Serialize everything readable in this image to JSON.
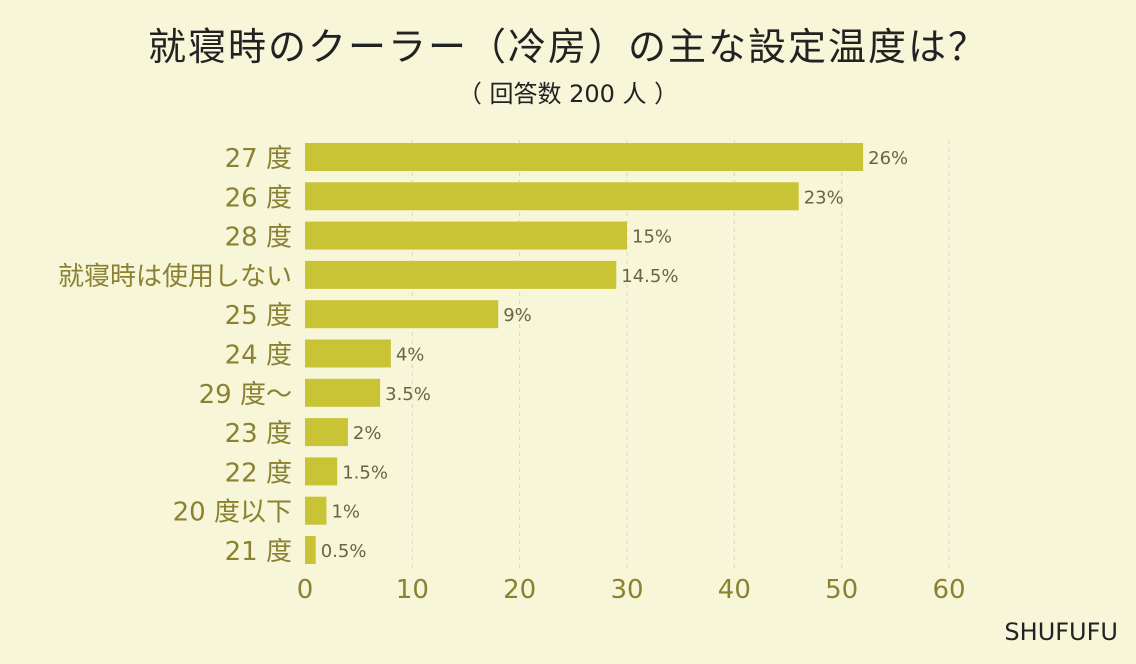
{
  "title": "就寝時のクーラー（冷房）の主な設定温度は？",
  "subtitle": "（ 回答数 200 人 ）",
  "credit": "SHUFUFU",
  "colors": {
    "background": "#f7f6d9",
    "bar": "#c9c436",
    "axis_text": "#8a8232",
    "value_text": "#6b6440",
    "grid": "#d9d7c4"
  },
  "chart_data": {
    "type": "bar",
    "orientation": "horizontal",
    "categories": [
      "27 度",
      "26 度",
      "28 度",
      "就寝時は使用しない",
      "25 度",
      "24 度",
      "29 度～",
      "23 度",
      "22 度",
      "20 度以下",
      "21 度"
    ],
    "values": [
      52,
      46,
      30,
      29,
      18,
      8,
      7,
      4,
      3,
      2,
      1
    ],
    "value_labels": [
      "26%",
      "23%",
      "15%",
      "14.5%",
      "9%",
      "4%",
      "3.5%",
      "2%",
      "1.5%",
      "1%",
      "0.5%"
    ],
    "xlim": [
      0,
      60
    ],
    "xticks": [
      0,
      10,
      20,
      30,
      40,
      50,
      60
    ],
    "grid": "vertical-dashed",
    "legend": "none"
  }
}
